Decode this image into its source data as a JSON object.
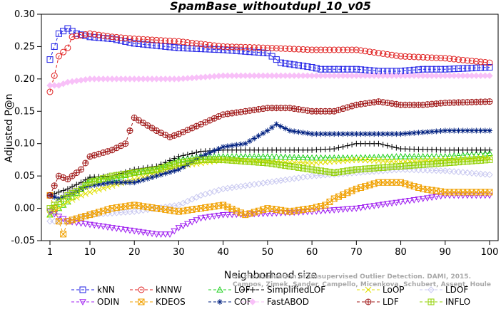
{
  "chart_data": {
    "type": "line",
    "title": "SpamBase_withoutdupl_10_v05",
    "xlabel": "Neighborhood size",
    "ylabel": "Adjusted P@n",
    "xlim": [
      1,
      100
    ],
    "ylim": [
      -0.05,
      0.3
    ],
    "x_ticks": [
      1,
      10,
      20,
      30,
      40,
      50,
      60,
      70,
      80,
      90,
      100
    ],
    "y_ticks": [
      -0.05,
      0.0,
      0.05,
      0.1,
      0.15,
      0.2,
      0.25,
      0.3
    ],
    "y_tick_labels": [
      "-0.05",
      "0.00",
      "0.05",
      "0.10",
      "0.15",
      "0.20",
      "0.25",
      "0.30"
    ],
    "grid": false,
    "legend_position": "bottom",
    "watermark": [
      "Campos, Zimek, Sander, Campello, Micenkova, Schubert, Assent, Houle",
      "On the Evaluation of Unsupervised Outlier Detection. DAMI, 2015."
    ],
    "series": [
      {
        "name": "kNN",
        "color": "#1f1fe6",
        "marker": "square",
        "knots": [
          [
            1,
            0.23
          ],
          [
            2,
            0.25
          ],
          [
            3,
            0.27
          ],
          [
            5,
            0.278
          ],
          [
            7,
            0.27
          ],
          [
            10,
            0.265
          ],
          [
            15,
            0.262
          ],
          [
            20,
            0.255
          ],
          [
            30,
            0.248
          ],
          [
            40,
            0.245
          ],
          [
            50,
            0.24
          ],
          [
            53,
            0.225
          ],
          [
            60,
            0.218
          ],
          [
            62,
            0.215
          ],
          [
            70,
            0.215
          ],
          [
            75,
            0.212
          ],
          [
            80,
            0.212
          ],
          [
            85,
            0.215
          ],
          [
            90,
            0.215
          ],
          [
            100,
            0.218
          ]
        ]
      },
      {
        "name": "kNNW",
        "color": "#e01f1f",
        "marker": "circle",
        "knots": [
          [
            1,
            0.18
          ],
          [
            2,
            0.205
          ],
          [
            3,
            0.235
          ],
          [
            5,
            0.248
          ],
          [
            6,
            0.265
          ],
          [
            10,
            0.27
          ],
          [
            15,
            0.265
          ],
          [
            20,
            0.262
          ],
          [
            30,
            0.258
          ],
          [
            40,
            0.25
          ],
          [
            50,
            0.248
          ],
          [
            60,
            0.245
          ],
          [
            70,
            0.245
          ],
          [
            75,
            0.24
          ],
          [
            80,
            0.235
          ],
          [
            90,
            0.232
          ],
          [
            100,
            0.225
          ]
        ]
      },
      {
        "name": "LOF",
        "color": "#1fd01f",
        "marker": "triangle",
        "knots": [
          [
            1,
            -0.01
          ],
          [
            3,
            0.0
          ],
          [
            5,
            0.01
          ],
          [
            8,
            0.03
          ],
          [
            10,
            0.045
          ],
          [
            15,
            0.045
          ],
          [
            20,
            0.055
          ],
          [
            25,
            0.06
          ],
          [
            30,
            0.075
          ],
          [
            35,
            0.08
          ],
          [
            40,
            0.08
          ],
          [
            50,
            0.08
          ],
          [
            60,
            0.078
          ],
          [
            70,
            0.078
          ],
          [
            80,
            0.08
          ],
          [
            90,
            0.08
          ],
          [
            100,
            0.085
          ]
        ]
      },
      {
        "name": "SimplifiedLOF",
        "color": "#000000",
        "marker": "plus",
        "knots": [
          [
            1,
            0.02
          ],
          [
            3,
            0.025
          ],
          [
            5,
            0.03
          ],
          [
            8,
            0.04
          ],
          [
            10,
            0.048
          ],
          [
            15,
            0.05
          ],
          [
            20,
            0.06
          ],
          [
            25,
            0.065
          ],
          [
            30,
            0.08
          ],
          [
            35,
            0.088
          ],
          [
            40,
            0.09
          ],
          [
            50,
            0.09
          ],
          [
            60,
            0.09
          ],
          [
            65,
            0.092
          ],
          [
            70,
            0.1
          ],
          [
            75,
            0.1
          ],
          [
            80,
            0.092
          ],
          [
            90,
            0.09
          ],
          [
            100,
            0.09
          ]
        ]
      },
      {
        "name": "LoOP",
        "color": "#e0e000",
        "marker": "x",
        "knots": [
          [
            1,
            -0.01
          ],
          [
            3,
            0.0
          ],
          [
            5,
            0.01
          ],
          [
            8,
            0.02
          ],
          [
            10,
            0.025
          ],
          [
            15,
            0.035
          ],
          [
            20,
            0.045
          ],
          [
            25,
            0.055
          ],
          [
            30,
            0.065
          ],
          [
            35,
            0.07
          ],
          [
            40,
            0.075
          ],
          [
            50,
            0.072
          ],
          [
            60,
            0.07
          ],
          [
            70,
            0.075
          ],
          [
            80,
            0.072
          ],
          [
            90,
            0.075
          ],
          [
            100,
            0.078
          ]
        ]
      },
      {
        "name": "LDOF",
        "color": "#c8c8f0",
        "marker": "diamond",
        "knots": [
          [
            1,
            -0.02
          ],
          [
            5,
            -0.02
          ],
          [
            10,
            -0.01
          ],
          [
            20,
            -0.005
          ],
          [
            25,
            0.0
          ],
          [
            30,
            0.005
          ],
          [
            35,
            0.02
          ],
          [
            40,
            0.03
          ],
          [
            50,
            0.04
          ],
          [
            60,
            0.05
          ],
          [
            70,
            0.055
          ],
          [
            80,
            0.06
          ],
          [
            90,
            0.058
          ],
          [
            100,
            0.052
          ]
        ]
      },
      {
        "name": "ODIN",
        "color": "#a020f0",
        "marker": "triangle-down",
        "knots": [
          [
            1,
            -0.005
          ],
          [
            5,
            -0.02
          ],
          [
            10,
            -0.025
          ],
          [
            15,
            -0.03
          ],
          [
            20,
            -0.035
          ],
          [
            25,
            -0.04
          ],
          [
            28,
            -0.04
          ],
          [
            30,
            -0.03
          ],
          [
            35,
            -0.015
          ],
          [
            40,
            -0.01
          ],
          [
            50,
            -0.008
          ],
          [
            60,
            -0.005
          ],
          [
            70,
            0.0
          ],
          [
            80,
            0.01
          ],
          [
            90,
            0.02
          ],
          [
            100,
            0.02
          ]
        ]
      },
      {
        "name": "KDEOS",
        "color": "#f0a000",
        "marker": "square-x",
        "knots": [
          [
            1,
            0.02
          ],
          [
            3,
            -0.02
          ],
          [
            4,
            -0.04
          ],
          [
            5,
            -0.02
          ],
          [
            10,
            -0.01
          ],
          [
            15,
            0.0
          ],
          [
            20,
            0.005
          ],
          [
            25,
            0.0
          ],
          [
            30,
            -0.005
          ],
          [
            35,
            0.0
          ],
          [
            40,
            0.005
          ],
          [
            45,
            -0.01
          ],
          [
            50,
            0.0
          ],
          [
            55,
            -0.005
          ],
          [
            60,
            0.0
          ],
          [
            63,
            0.005
          ],
          [
            65,
            0.015
          ],
          [
            70,
            0.03
          ],
          [
            75,
            0.04
          ],
          [
            80,
            0.04
          ],
          [
            85,
            0.03
          ],
          [
            90,
            0.025
          ],
          [
            100,
            0.025
          ]
        ]
      },
      {
        "name": "COF",
        "color": "#002080",
        "marker": "star",
        "knots": [
          [
            1,
            0.02
          ],
          [
            3,
            0.015
          ],
          [
            5,
            0.02
          ],
          [
            8,
            0.03
          ],
          [
            10,
            0.035
          ],
          [
            15,
            0.04
          ],
          [
            20,
            0.04
          ],
          [
            25,
            0.05
          ],
          [
            30,
            0.06
          ],
          [
            35,
            0.08
          ],
          [
            40,
            0.095
          ],
          [
            45,
            0.1
          ],
          [
            50,
            0.12
          ],
          [
            52,
            0.13
          ],
          [
            55,
            0.12
          ],
          [
            60,
            0.115
          ],
          [
            70,
            0.115
          ],
          [
            80,
            0.115
          ],
          [
            90,
            0.12
          ],
          [
            100,
            0.12
          ]
        ]
      },
      {
        "name": "FastABOD",
        "color": "#f8c0f8",
        "marker": "diamond-filled",
        "knots": [
          [
            1,
            0.19
          ],
          [
            3,
            0.19
          ],
          [
            5,
            0.195
          ],
          [
            10,
            0.2
          ],
          [
            20,
            0.2
          ],
          [
            30,
            0.2
          ],
          [
            40,
            0.205
          ],
          [
            50,
            0.205
          ],
          [
            60,
            0.205
          ],
          [
            70,
            0.205
          ],
          [
            80,
            0.205
          ],
          [
            90,
            0.205
          ],
          [
            100,
            0.205
          ]
        ]
      },
      {
        "name": "LDF",
        "color": "#a01818",
        "marker": "circle-plus",
        "knots": [
          [
            1,
            0.02
          ],
          [
            3,
            0.05
          ],
          [
            5,
            0.045
          ],
          [
            8,
            0.06
          ],
          [
            10,
            0.08
          ],
          [
            15,
            0.09
          ],
          [
            18,
            0.1
          ],
          [
            20,
            0.14
          ],
          [
            25,
            0.12
          ],
          [
            28,
            0.11
          ],
          [
            30,
            0.115
          ],
          [
            35,
            0.13
          ],
          [
            40,
            0.145
          ],
          [
            45,
            0.15
          ],
          [
            50,
            0.155
          ],
          [
            55,
            0.155
          ],
          [
            60,
            0.15
          ],
          [
            65,
            0.15
          ],
          [
            70,
            0.16
          ],
          [
            75,
            0.165
          ],
          [
            80,
            0.16
          ],
          [
            85,
            0.16
          ],
          [
            90,
            0.163
          ],
          [
            100,
            0.165
          ]
        ]
      },
      {
        "name": "INFLO",
        "color": "#90d000",
        "marker": "square-cross",
        "knots": [
          [
            1,
            0.0
          ],
          [
            3,
            0.01
          ],
          [
            5,
            0.02
          ],
          [
            8,
            0.03
          ],
          [
            10,
            0.04
          ],
          [
            15,
            0.05
          ],
          [
            20,
            0.055
          ],
          [
            25,
            0.06
          ],
          [
            30,
            0.07
          ],
          [
            35,
            0.075
          ],
          [
            40,
            0.075
          ],
          [
            50,
            0.07
          ],
          [
            55,
            0.065
          ],
          [
            60,
            0.06
          ],
          [
            65,
            0.055
          ],
          [
            70,
            0.06
          ],
          [
            80,
            0.065
          ],
          [
            90,
            0.07
          ],
          [
            100,
            0.075
          ]
        ]
      }
    ]
  }
}
